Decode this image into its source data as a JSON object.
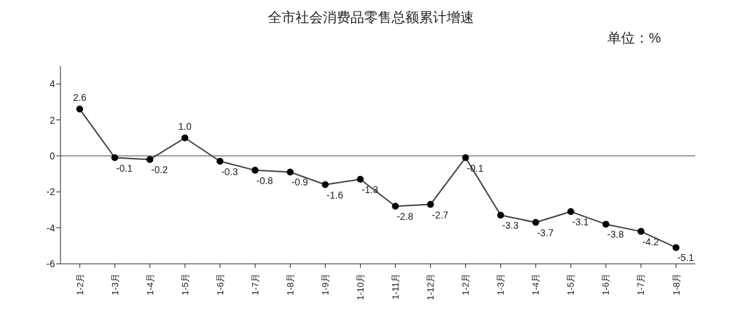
{
  "chart_data": {
    "type": "line",
    "title": "全市社会消费品零售总额累计增速",
    "annotations": [
      "单位：%"
    ],
    "categories": [
      "1-2月",
      "1-3月",
      "1-4月",
      "1-5月",
      "1-6月",
      "1-7月",
      "1-8月",
      "1-9月",
      "1-10月",
      "1-11月",
      "1-12月",
      "1-2月",
      "1-3月",
      "1-4月",
      "1-5月",
      "1-6月",
      "1-7月",
      "1-8月"
    ],
    "series": [
      {
        "color": "#404040",
        "values": [
          2.6,
          -0.1,
          -0.2,
          1.0,
          -0.3,
          -0.8,
          -0.9,
          -1.6,
          -1.3,
          -2.8,
          -2.7,
          -0.1,
          -3.3,
          -3.7,
          -3.1,
          -3.8,
          -4.2,
          -5.1
        ],
        "value_labels": [
          "2.6",
          "-0.1",
          "-0.2",
          "1.0",
          "-0.3",
          "-0.8",
          "-0.9",
          "-1.6",
          "-1.3",
          "-2.8",
          "-2.7",
          "-0.1",
          "-3.3",
          "-3.7",
          "-3.1",
          "-3.8",
          "-4.2",
          "-5.1"
        ]
      }
    ],
    "ylim": [
      -6,
      5
    ],
    "yticks": [
      -6,
      -4,
      -2,
      0,
      2,
      4
    ],
    "grid": false,
    "legend": false,
    "marker": "circle",
    "line_style": "solid",
    "ref_lines": [
      {
        "axis": "y",
        "value": 0,
        "color": "#404040"
      }
    ]
  }
}
